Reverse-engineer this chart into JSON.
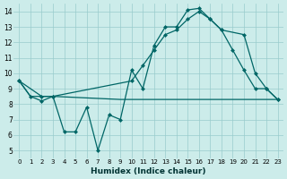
{
  "xlabel": "Humidex (Indice chaleur)",
  "bg_color": "#ccecea",
  "grid_color": "#99cccc",
  "line_color": "#006666",
  "xlim": [
    -0.5,
    23.5
  ],
  "ylim": [
    4.5,
    14.5
  ],
  "xticks": [
    0,
    1,
    2,
    3,
    4,
    5,
    6,
    7,
    8,
    9,
    10,
    11,
    12,
    13,
    14,
    15,
    16,
    17,
    18,
    19,
    20,
    21,
    22,
    23
  ],
  "yticks": [
    5,
    6,
    7,
    8,
    9,
    10,
    11,
    12,
    13,
    14
  ],
  "line1_x": [
    0,
    1,
    2,
    3,
    4,
    5,
    6,
    7,
    8,
    9,
    10,
    11,
    12,
    13,
    14,
    15,
    16,
    17,
    18,
    19,
    20,
    21,
    22,
    23
  ],
  "line1_y": [
    9.5,
    8.5,
    8.2,
    8.5,
    6.2,
    6.2,
    7.8,
    5.0,
    7.3,
    7.0,
    10.2,
    9.0,
    11.8,
    13.0,
    13.0,
    14.1,
    14.2,
    13.5,
    12.8,
    11.5,
    10.2,
    9.0,
    9.0,
    8.3
  ],
  "line2_x": [
    0,
    2,
    3,
    10,
    11,
    12,
    13,
    14,
    15,
    16,
    17,
    18,
    20,
    21,
    22,
    23
  ],
  "line2_y": [
    9.5,
    8.5,
    8.5,
    9.5,
    10.5,
    11.5,
    12.5,
    12.8,
    13.5,
    14.0,
    13.5,
    12.8,
    12.5,
    10.0,
    9.0,
    8.3
  ],
  "line3_x": [
    0,
    1,
    2,
    3,
    9,
    10,
    11,
    12,
    13,
    14,
    15,
    16,
    17,
    18,
    19,
    20,
    21,
    22,
    23
  ],
  "line3_y": [
    9.5,
    8.5,
    8.5,
    8.5,
    8.3,
    8.3,
    8.3,
    8.3,
    8.3,
    8.3,
    8.3,
    8.3,
    8.3,
    8.3,
    8.3,
    8.3,
    8.3,
    8.3,
    8.3
  ]
}
